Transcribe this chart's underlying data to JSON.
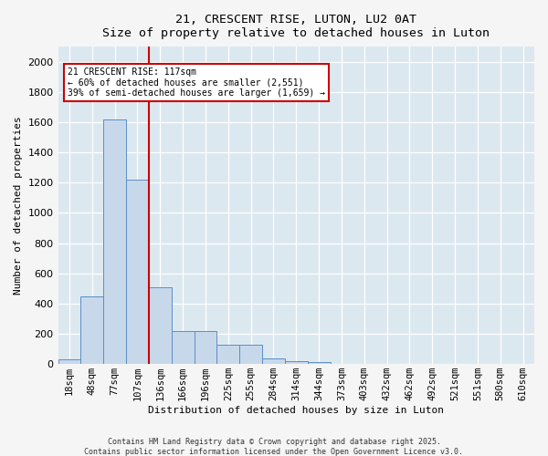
{
  "title1": "21, CRESCENT RISE, LUTON, LU2 0AT",
  "title2": "Size of property relative to detached houses in Luton",
  "xlabel": "Distribution of detached houses by size in Luton",
  "ylabel": "Number of detached properties",
  "bar_labels": [
    "18sqm",
    "48sqm",
    "77sqm",
    "107sqm",
    "136sqm",
    "166sqm",
    "196sqm",
    "225sqm",
    "255sqm",
    "284sqm",
    "314sqm",
    "344sqm",
    "373sqm",
    "403sqm",
    "432sqm",
    "462sqm",
    "492sqm",
    "521sqm",
    "551sqm",
    "580sqm",
    "610sqm"
  ],
  "bar_values": [
    30,
    450,
    1620,
    1220,
    510,
    220,
    220,
    130,
    130,
    40,
    20,
    15,
    0,
    0,
    0,
    0,
    0,
    0,
    0,
    0,
    0
  ],
  "bar_color": "#c8d8eb",
  "bar_edge_color": "#5b8ec4",
  "ylim": [
    0,
    2100
  ],
  "yticks": [
    0,
    200,
    400,
    600,
    800,
    1000,
    1200,
    1400,
    1600,
    1800,
    2000
  ],
  "vline_x_index": 3.5,
  "vline_color": "#cc0000",
  "annotation_box_text": "21 CRESCENT RISE: 117sqm\n← 60% of detached houses are smaller (2,551)\n39% of semi-detached houses are larger (1,659) →",
  "box_edge_color": "#cc0000",
  "plot_bg_color": "#dce8f0",
  "fig_bg_color": "#f5f5f5",
  "footer1": "Contains HM Land Registry data © Crown copyright and database right 2025.",
  "footer2": "Contains public sector information licensed under the Open Government Licence v3.0."
}
